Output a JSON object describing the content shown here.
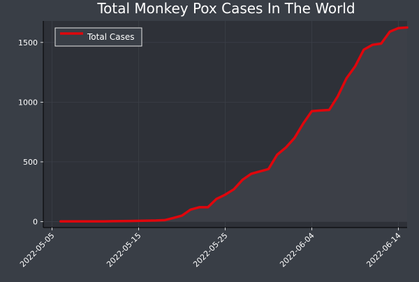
{
  "colors": {
    "page_background": "#393e46",
    "plot_background": "#2e3138",
    "text": "#ffffff",
    "grid": "#3b3f47",
    "area_fill": "#3c3f47",
    "line": "#e0060c",
    "legend_background": "#393e46",
    "legend_border": "#e8e8e8"
  },
  "chart_data": {
    "type": "line",
    "title": "Total Monkey Pox Cases In The World",
    "xlabel": "",
    "ylabel": "",
    "x_axis_type": "date",
    "xlim": [
      "2022-05-04",
      "2022-06-15"
    ],
    "ylim": [
      -50,
      1680
    ],
    "x_ticks": [
      "2022-05-05",
      "2022-05-15",
      "2022-05-25",
      "2022-06-04",
      "2022-06-14"
    ],
    "y_ticks": [
      0,
      500,
      1000,
      1500
    ],
    "grid": true,
    "legend_position": "top-left",
    "series": [
      {
        "name": "Total Cases",
        "fill_under": true,
        "points": [
          [
            "2022-05-06",
            2
          ],
          [
            "2022-05-07",
            2
          ],
          [
            "2022-05-08",
            2
          ],
          [
            "2022-05-09",
            2
          ],
          [
            "2022-05-10",
            2
          ],
          [
            "2022-05-11",
            2
          ],
          [
            "2022-05-12",
            3
          ],
          [
            "2022-05-13",
            4
          ],
          [
            "2022-05-14",
            5
          ],
          [
            "2022-05-15",
            6
          ],
          [
            "2022-05-16",
            8
          ],
          [
            "2022-05-17",
            9
          ],
          [
            "2022-05-18",
            12
          ],
          [
            "2022-05-19",
            30
          ],
          [
            "2022-05-20",
            50
          ],
          [
            "2022-05-21",
            100
          ],
          [
            "2022-05-22",
            120
          ],
          [
            "2022-05-23",
            120
          ],
          [
            "2022-05-24",
            190
          ],
          [
            "2022-05-25",
            225
          ],
          [
            "2022-05-26",
            270
          ],
          [
            "2022-05-27",
            350
          ],
          [
            "2022-05-28",
            400
          ],
          [
            "2022-05-29",
            420
          ],
          [
            "2022-05-30",
            440
          ],
          [
            "2022-05-31",
            560
          ],
          [
            "2022-06-01",
            620
          ],
          [
            "2022-06-02",
            700
          ],
          [
            "2022-06-03",
            820
          ],
          [
            "2022-06-04",
            925
          ],
          [
            "2022-06-05",
            930
          ],
          [
            "2022-06-06",
            935
          ],
          [
            "2022-06-07",
            1050
          ],
          [
            "2022-06-08",
            1200
          ],
          [
            "2022-06-09",
            1300
          ],
          [
            "2022-06-10",
            1440
          ],
          [
            "2022-06-11",
            1480
          ],
          [
            "2022-06-12",
            1490
          ],
          [
            "2022-06-13",
            1590
          ],
          [
            "2022-06-14",
            1620
          ],
          [
            "2022-06-15",
            1625
          ]
        ]
      }
    ]
  }
}
